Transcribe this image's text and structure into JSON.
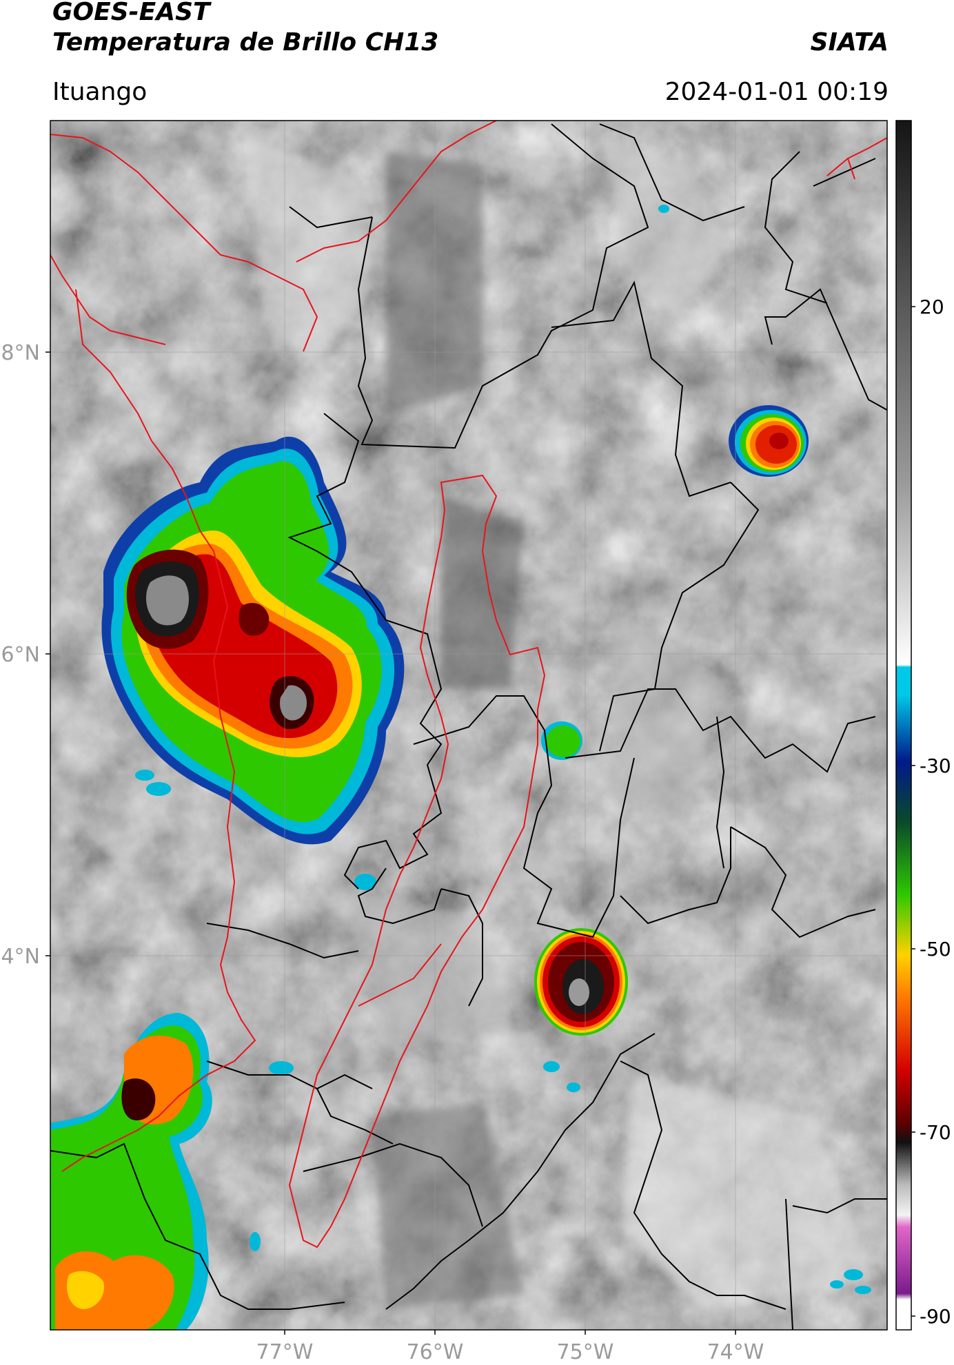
{
  "header": {
    "title_line1": "GOES-EAST",
    "title_line2": "Temperatura de Brillo CH13",
    "brand": "SIATA",
    "location": "Ituango",
    "datetime": "2024-01-01 00:19"
  },
  "map": {
    "lat_labels": [
      "8°N",
      "6°N",
      "4°N"
    ],
    "lon_labels": [
      "77°W",
      "76°W",
      "75°W",
      "74°W"
    ],
    "boundary_colors": {
      "national_and_regional": "#e8141c",
      "department": "#000000"
    }
  },
  "colorbar": {
    "ticks": [
      "20",
      "-30",
      "-50",
      "-70",
      "-90"
    ],
    "stops": [
      "#ffffff",
      "#ffffff",
      "#7a1a8c",
      "#e266c8",
      "#f3f3f3",
      "#bbbbbb",
      "#111111",
      "#5a0000",
      "#d40000",
      "#ff7a00",
      "#ffd200",
      "#2ec800",
      "#0a4a2a",
      "#001a8a",
      "#00c8e8",
      "#ffffff",
      "#9a9a9a",
      "#151515"
    ]
  }
}
